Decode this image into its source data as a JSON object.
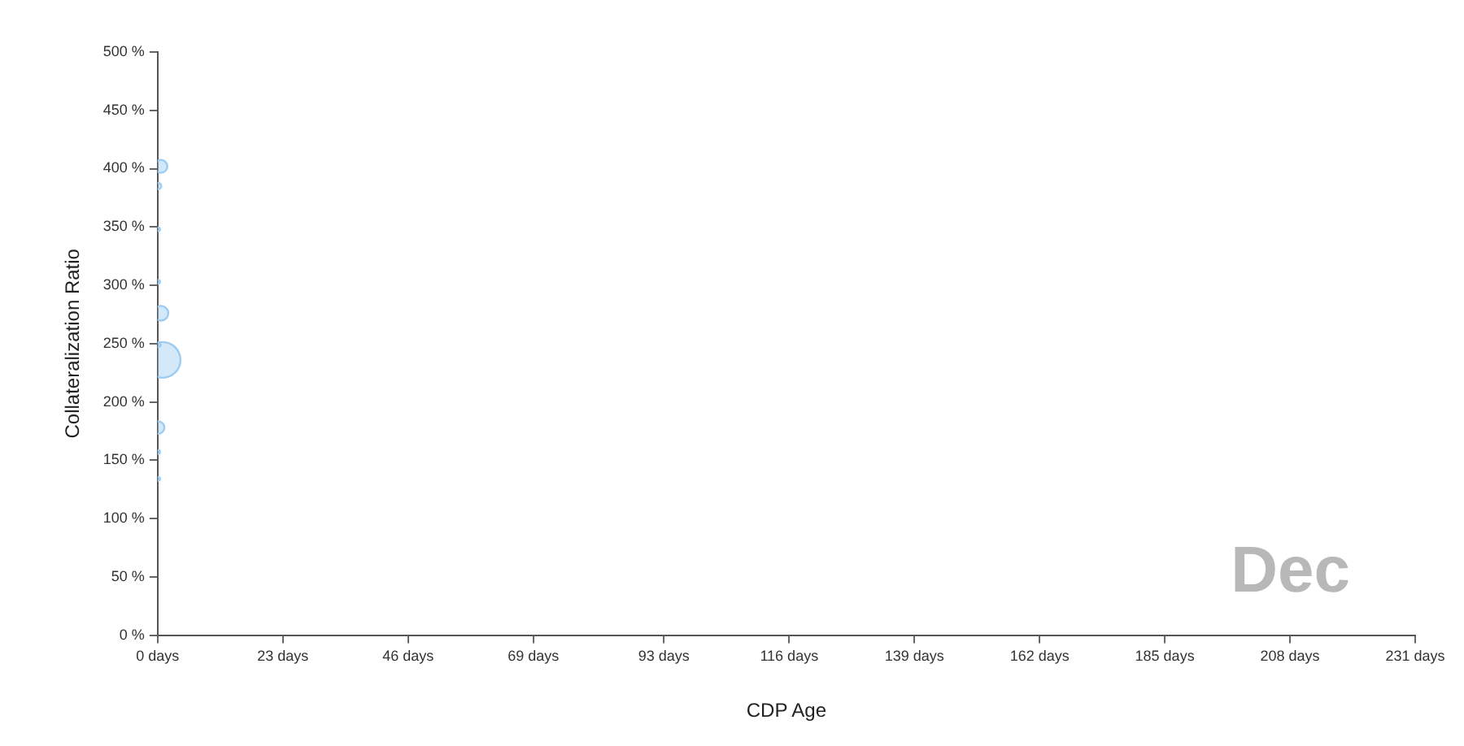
{
  "chart_data": {
    "type": "bubble",
    "xlabel": "CDP Age",
    "ylabel": "Collateralization Ratio",
    "annotations": [
      "Dec"
    ],
    "x": [
      0.6,
      0.1,
      0.6,
      0.1,
      0.9,
      0.1,
      0.1,
      0.1,
      0.1,
      0.1
    ],
    "values": [
      402,
      385,
      276,
      249,
      236,
      178,
      303,
      348,
      157,
      134
    ],
    "sizes": [
      0.13,
      0.03,
      0.17,
      0.02,
      1,
      0.12,
      0.01,
      0.01,
      0.01,
      0.01
    ],
    "color": "#9ecbf0",
    "xlim": [
      0,
      231
    ],
    "xticks": [
      {
        "value": 0,
        "label": "0 days"
      },
      {
        "value": 23,
        "label": "23 days"
      },
      {
        "value": 46,
        "label": "46 days"
      },
      {
        "value": 69,
        "label": "69 days"
      },
      {
        "value": 93,
        "label": "93 days"
      },
      {
        "value": 116,
        "label": "116 days"
      },
      {
        "value": 139,
        "label": "139 days"
      },
      {
        "value": 162,
        "label": "162 days"
      },
      {
        "value": 185,
        "label": "185 days"
      },
      {
        "value": 208,
        "label": "208 days"
      },
      {
        "value": 231,
        "label": "231 days"
      }
    ],
    "ylim": [
      0,
      500
    ],
    "yticks": [
      {
        "value": 0,
        "label": "0 %"
      },
      {
        "value": 50,
        "label": "50 %"
      },
      {
        "value": 100,
        "label": "100 %"
      },
      {
        "value": 150,
        "label": "150 %"
      },
      {
        "value": 200,
        "label": "200 %"
      },
      {
        "value": 250,
        "label": "250 %"
      },
      {
        "value": 300,
        "label": "300 %"
      },
      {
        "value": 350,
        "label": "350 %"
      },
      {
        "value": 400,
        "label": "400 %"
      },
      {
        "value": 450,
        "label": "450 %"
      },
      {
        "value": 500,
        "label": "500 %"
      }
    ],
    "grid": false,
    "legend": false
  }
}
